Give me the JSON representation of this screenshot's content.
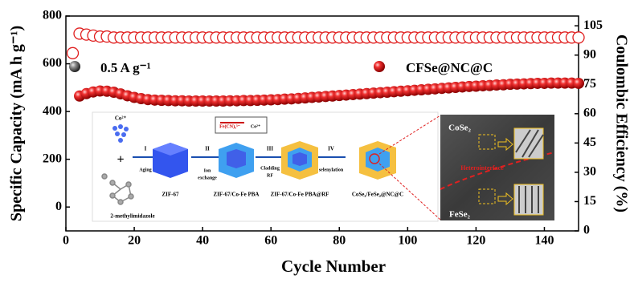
{
  "chart_data": {
    "type": "scatter",
    "x_label": "Cycle Number",
    "y_label": "Specific Capacity (mA h g⁻¹)",
    "y2_label": "Coulombic Efficiency (%)",
    "current_density": "0.5 A g⁻¹",
    "xlim": [
      0,
      150
    ],
    "xticks": [
      0,
      20,
      40,
      60,
      80,
      100,
      120,
      140
    ],
    "ylim": [
      -100,
      800
    ],
    "yticks": [
      0,
      200,
      400,
      600,
      800
    ],
    "y2lim": [
      0,
      110
    ],
    "y2ticks": [
      0,
      15,
      30,
      45,
      60,
      75,
      90,
      105
    ],
    "series": [
      {
        "name": "CFSe@NC@C",
        "color": "#e02020",
        "x": [
          4,
          6,
          8,
          10,
          12,
          14,
          16,
          18,
          20,
          22,
          24,
          26,
          28,
          30,
          32,
          34,
          36,
          38,
          40,
          42,
          44,
          46,
          48,
          50,
          52,
          54,
          56,
          58,
          60,
          62,
          64,
          66,
          68,
          70,
          72,
          74,
          76,
          78,
          80,
          82,
          84,
          86,
          88,
          90,
          92,
          94,
          96,
          98,
          100,
          102,
          104,
          106,
          108,
          110,
          112,
          114,
          116,
          118,
          120,
          122,
          124,
          126,
          128,
          130,
          132,
          134,
          136,
          138,
          140,
          142,
          144,
          146,
          148,
          150
        ],
        "values": [
          465,
          475,
          482,
          486,
          485,
          481,
          474,
          466,
          459,
          454,
          450,
          448,
          447,
          446,
          445,
          445,
          444,
          444,
          444,
          444,
          444,
          444,
          445,
          445,
          446,
          446,
          447,
          448,
          449,
          450,
          452,
          453,
          455,
          457,
          459,
          461,
          463,
          465,
          467,
          469,
          471,
          473,
          475,
          477,
          479,
          481,
          483,
          485,
          487,
          489,
          491,
          493,
          495,
          497,
          499,
          501,
          503,
          505,
          506,
          508,
          509,
          511,
          512,
          514,
          515,
          516,
          517,
          518,
          518,
          519,
          519,
          519,
          519,
          518
        ]
      },
      {
        "color": "#e02020",
        "axis": "y2",
        "x": [
          2,
          4,
          6,
          8,
          10,
          12,
          14,
          16,
          18,
          20,
          22,
          24,
          26,
          28,
          30,
          32,
          34,
          36,
          38,
          40,
          42,
          44,
          46,
          48,
          50,
          52,
          54,
          56,
          58,
          60,
          62,
          64,
          66,
          68,
          70,
          72,
          74,
          76,
          78,
          80,
          82,
          84,
          86,
          88,
          90,
          92,
          94,
          96,
          98,
          100,
          102,
          104,
          106,
          108,
          110,
          112,
          114,
          116,
          118,
          120,
          122,
          124,
          126,
          128,
          130,
          132,
          134,
          136,
          138,
          140,
          142,
          144,
          146,
          148,
          150
        ],
        "values": [
          91,
          101,
          100.5,
          100,
          99.5,
          99.5,
          99,
          99,
          99,
          99,
          99,
          99,
          99,
          99,
          99,
          99,
          99,
          99,
          99,
          99,
          99,
          99,
          99,
          99,
          99,
          99,
          99,
          99,
          99,
          99,
          99,
          99,
          99,
          99,
          99,
          99,
          99,
          99,
          99,
          99,
          99,
          99,
          99,
          99,
          99,
          99,
          99,
          99,
          99,
          99,
          99,
          99,
          99,
          99,
          99,
          99,
          99,
          99,
          99,
          99,
          99,
          99,
          99,
          99,
          99,
          99,
          99,
          99,
          99,
          99,
          99,
          99,
          99,
          99,
          99
        ]
      }
    ],
    "annotations": [
      "Co²⁺",
      "I",
      "Aging",
      "II",
      "Ion",
      "exchange",
      "III",
      "Cladding",
      "RF",
      "IV",
      "selenylation",
      "ZIF-67",
      "ZIF-67/Co-Fe PBA",
      "ZIF-67/Co-Fe PBA@RF",
      "CoSe₂/FeSe₂@NC@C",
      "2-methylimidazole",
      "Fe(CN)₆³⁻",
      "Co²⁺",
      "CoSe₂",
      "Heterointerface",
      "FeSe₂"
    ]
  }
}
